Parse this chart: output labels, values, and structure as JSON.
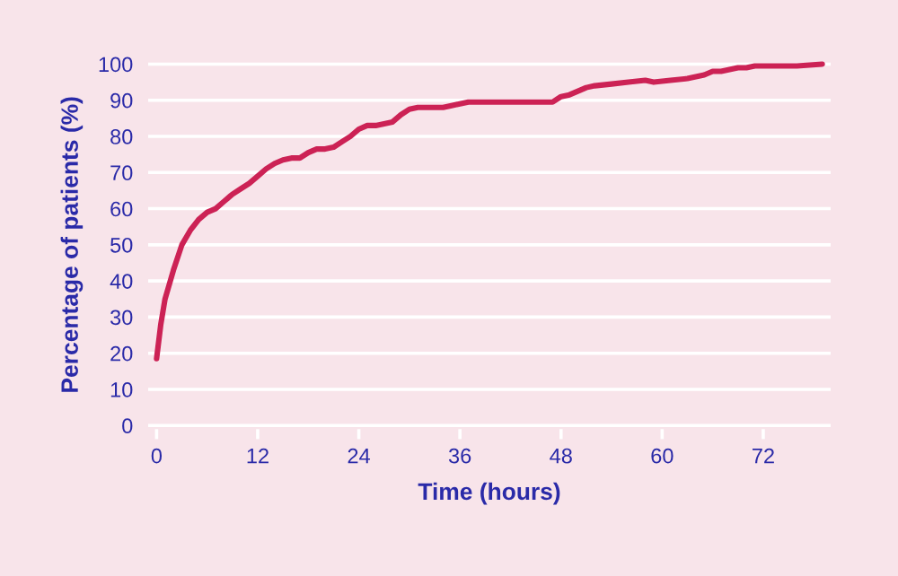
{
  "chart_data": {
    "type": "line",
    "xlabel": "Time (hours)",
    "ylabel": "Percentage of patients (%)",
    "series": [
      {
        "color": "#cc2255",
        "x": [
          0,
          0.5,
          1,
          2,
          3,
          4,
          5,
          6,
          7,
          8,
          9,
          10,
          11,
          12,
          13,
          14,
          15,
          16,
          17,
          18,
          19,
          20,
          21,
          22,
          23,
          24,
          25,
          26,
          27,
          28,
          29,
          30,
          31,
          32,
          33,
          34,
          35,
          36,
          37,
          40,
          44,
          47,
          48,
          49,
          50,
          51,
          52,
          54,
          56,
          58,
          59,
          61,
          63,
          65,
          66,
          67,
          68,
          69,
          70,
          71,
          72,
          76,
          79
        ],
        "values": [
          18.5,
          28,
          35,
          43,
          50,
          54,
          57,
          59,
          60,
          62,
          64,
          65.5,
          67,
          69,
          71,
          72.5,
          73.5,
          74,
          74,
          75.5,
          76.5,
          76.5,
          77,
          78.5,
          80,
          82,
          83,
          83,
          83.5,
          84,
          86,
          87.5,
          88,
          88,
          88,
          88,
          88.5,
          89,
          89.5,
          89.5,
          89.5,
          89.5,
          91,
          91.5,
          92.5,
          93.5,
          94,
          94.5,
          95,
          95.5,
          95,
          95.5,
          96,
          97,
          98,
          98,
          98.5,
          99,
          99,
          99.5,
          99.5,
          99.5,
          100
        ]
      }
    ],
    "xlim": [
      -1,
      80
    ],
    "ylim": [
      -1,
      101
    ],
    "xticks": [
      0,
      12,
      24,
      36,
      48,
      60,
      72
    ],
    "yticks": [
      0,
      10,
      20,
      30,
      40,
      50,
      60,
      70,
      80,
      90,
      100
    ],
    "grid": "y",
    "legend": false,
    "line_style": "solid",
    "marker": "none"
  }
}
